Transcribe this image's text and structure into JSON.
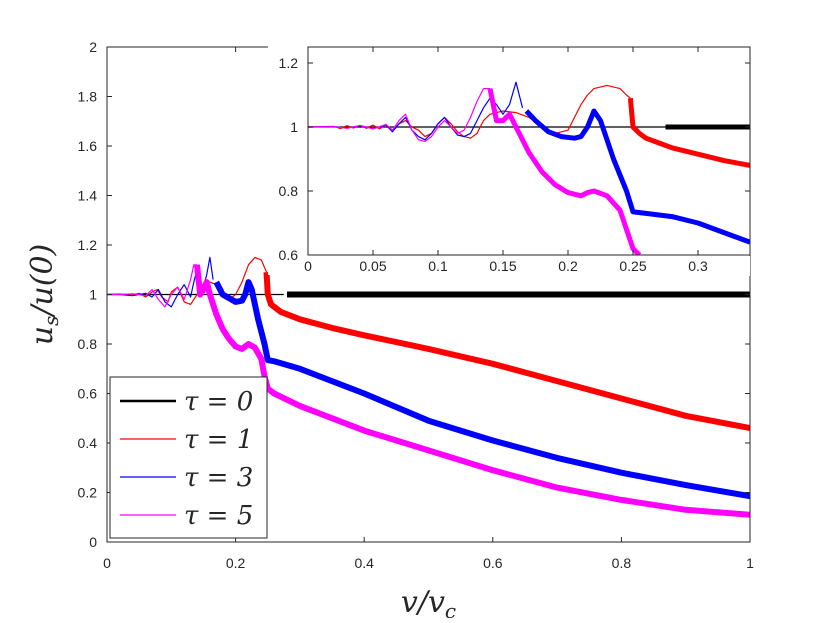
{
  "chart_data": [
    {
      "name": "main",
      "type": "line",
      "xlabel": "v/v_c",
      "ylabel": "u_s/u(0)",
      "xlim": [
        0,
        1
      ],
      "ylim": [
        0,
        2
      ],
      "xticks": [
        0,
        0.2,
        0.4,
        0.6,
        0.8,
        1
      ],
      "xtick_labels": [
        "0",
        "0.2",
        "0.4",
        "0.6",
        "0.8",
        "1"
      ],
      "yticks": [
        0,
        0.2,
        0.4,
        0.6,
        0.8,
        1,
        1.2,
        1.4,
        1.6,
        1.8,
        2
      ],
      "ytick_labels": [
        "0",
        "0.2",
        "0.4",
        "0.6",
        "0.8",
        "1",
        "1.2",
        "1.4",
        "1.6",
        "1.8",
        "2"
      ],
      "grid": false,
      "legend_position": "bottom-left",
      "series": [
        {
          "name": "tau0",
          "label": "τ = 0",
          "color": "#000000",
          "thin": [
            [
              0,
              1
            ],
            [
              0.275,
              1
            ]
          ],
          "thick": [
            [
              0.28,
              1
            ],
            [
              1,
              1
            ]
          ]
        },
        {
          "name": "tau1",
          "label": "τ = 1",
          "color": "#ff0000",
          "thin": [
            [
              0,
              1
            ],
            [
              0.02,
              1.002
            ],
            [
              0.035,
              0.997
            ],
            [
              0.05,
              1.005
            ],
            [
              0.06,
              0.99
            ],
            [
              0.07,
              1.01
            ],
            [
              0.078,
              1.02
            ],
            [
              0.085,
              0.99
            ],
            [
              0.095,
              0.97
            ],
            [
              0.1,
              1.01
            ],
            [
              0.11,
              1.03
            ],
            [
              0.12,
              0.97
            ],
            [
              0.13,
              0.96
            ],
            [
              0.14,
              1.0
            ],
            [
              0.15,
              1.04
            ],
            [
              0.16,
              1.05
            ],
            [
              0.17,
              1.04
            ],
            [
              0.18,
              1.0
            ],
            [
              0.19,
              0.98
            ],
            [
              0.2,
              1.0
            ],
            [
              0.21,
              1.05
            ],
            [
              0.22,
              1.12
            ],
            [
              0.23,
              1.15
            ],
            [
              0.24,
              1.14
            ],
            [
              0.248,
              1.09
            ]
          ],
          "thick": [
            [
              0.248,
              1.09
            ],
            [
              0.25,
              1.0
            ],
            [
              0.255,
              0.96
            ],
            [
              0.27,
              0.93
            ],
            [
              0.3,
              0.9
            ],
            [
              0.35,
              0.865
            ],
            [
              0.4,
              0.835
            ],
            [
              0.5,
              0.78
            ],
            [
              0.6,
              0.72
            ],
            [
              0.7,
              0.65
            ],
            [
              0.8,
              0.58
            ],
            [
              0.9,
              0.51
            ],
            [
              1,
              0.46
            ]
          ]
        },
        {
          "name": "tau3",
          "label": "τ = 3",
          "color": "#0000ff",
          "thin": [
            [
              0,
              1
            ],
            [
              0.02,
              1.0
            ],
            [
              0.04,
              0.995
            ],
            [
              0.06,
              1.005
            ],
            [
              0.07,
              0.99
            ],
            [
              0.08,
              1.02
            ],
            [
              0.09,
              0.97
            ],
            [
              0.1,
              0.95
            ],
            [
              0.11,
              1.0
            ],
            [
              0.12,
              1.04
            ],
            [
              0.13,
              0.99
            ],
            [
              0.135,
              1.05
            ],
            [
              0.14,
              1.1
            ],
            [
              0.145,
              1.05
            ],
            [
              0.15,
              1.03
            ],
            [
              0.155,
              1.08
            ],
            [
              0.16,
              1.15
            ],
            [
              0.165,
              1.06
            ]
          ],
          "thick": [
            [
              0.17,
              1.05
            ],
            [
              0.18,
              1.0
            ],
            [
              0.2,
              0.97
            ],
            [
              0.21,
              0.975
            ],
            [
              0.215,
              1.0
            ],
            [
              0.22,
              1.05
            ],
            [
              0.225,
              1.02
            ],
            [
              0.235,
              0.9
            ],
            [
              0.245,
              0.8
            ],
            [
              0.25,
              0.735
            ],
            [
              0.26,
              0.73
            ],
            [
              0.3,
              0.7
            ],
            [
              0.4,
              0.6
            ],
            [
              0.5,
              0.49
            ],
            [
              0.6,
              0.41
            ],
            [
              0.7,
              0.34
            ],
            [
              0.8,
              0.28
            ],
            [
              0.9,
              0.23
            ],
            [
              1,
              0.185
            ]
          ]
        },
        {
          "name": "tau5",
          "label": "τ = 5",
          "color": "#ff00ff",
          "thin": [
            [
              0,
              1
            ],
            [
              0.02,
              1.0
            ],
            [
              0.04,
              1.003
            ],
            [
              0.06,
              0.995
            ],
            [
              0.07,
              1.02
            ],
            [
              0.08,
              0.98
            ],
            [
              0.09,
              0.95
            ],
            [
              0.1,
              1.0
            ],
            [
              0.11,
              1.03
            ],
            [
              0.12,
              0.98
            ],
            [
              0.13,
              1.06
            ],
            [
              0.135,
              1.12
            ],
            [
              0.14,
              1.12
            ]
          ],
          "thick": [
            [
              0.14,
              1.12
            ],
            [
              0.145,
              1.0
            ],
            [
              0.15,
              1.02
            ],
            [
              0.155,
              1.05
            ],
            [
              0.16,
              1.0
            ],
            [
              0.17,
              0.92
            ],
            [
              0.18,
              0.86
            ],
            [
              0.19,
              0.82
            ],
            [
              0.2,
              0.79
            ],
            [
              0.21,
              0.78
            ],
            [
              0.22,
              0.8
            ],
            [
              0.23,
              0.785
            ],
            [
              0.24,
              0.74
            ],
            [
              0.245,
              0.67
            ],
            [
              0.25,
              0.62
            ],
            [
              0.26,
              0.6
            ],
            [
              0.3,
              0.55
            ],
            [
              0.4,
              0.45
            ],
            [
              0.5,
              0.37
            ],
            [
              0.6,
              0.29
            ],
            [
              0.7,
              0.22
            ],
            [
              0.8,
              0.17
            ],
            [
              0.9,
              0.13
            ],
            [
              1,
              0.11
            ]
          ]
        }
      ]
    },
    {
      "name": "inset",
      "type": "line",
      "xlim": [
        0,
        0.34
      ],
      "ylim": [
        0.6,
        1.25
      ],
      "xticks": [
        0,
        0.05,
        0.1,
        0.15,
        0.2,
        0.25,
        0.3
      ],
      "xtick_labels": [
        "0",
        "0.05",
        "0.1",
        "0.15",
        "0.2",
        "0.25",
        "0.3"
      ],
      "yticks": [
        0.6,
        0.8,
        1,
        1.2
      ],
      "ytick_labels": [
        "0.6",
        "0.8",
        "1",
        "1.2"
      ],
      "grid": false,
      "series": [
        {
          "name": "tau0",
          "color": "#000000",
          "thin": [
            [
              0,
              1
            ],
            [
              0.275,
              1
            ]
          ],
          "thick": [
            [
              0.275,
              1
            ],
            [
              0.34,
              1
            ]
          ]
        },
        {
          "name": "tau1",
          "color": "#ff0000",
          "thin": [
            [
              0,
              1
            ],
            [
              0.02,
              1.002
            ],
            [
              0.025,
              0.995
            ],
            [
              0.03,
              1.004
            ],
            [
              0.035,
              0.997
            ],
            [
              0.04,
              1.005
            ],
            [
              0.045,
              0.996
            ],
            [
              0.05,
              1.006
            ],
            [
              0.055,
              0.994
            ],
            [
              0.06,
              1.008
            ],
            [
              0.065,
              0.99
            ],
            [
              0.07,
              1.01
            ],
            [
              0.075,
              1.02
            ],
            [
              0.08,
              1.0
            ],
            [
              0.085,
              0.99
            ],
            [
              0.09,
              0.97
            ],
            [
              0.095,
              0.98
            ],
            [
              0.1,
              1.01
            ],
            [
              0.105,
              1.03
            ],
            [
              0.11,
              1.01
            ],
            [
              0.115,
              0.985
            ],
            [
              0.12,
              0.97
            ],
            [
              0.125,
              0.965
            ],
            [
              0.13,
              0.98
            ],
            [
              0.135,
              1.02
            ],
            [
              0.14,
              1.04
            ],
            [
              0.15,
              1.05
            ],
            [
              0.16,
              1.045
            ],
            [
              0.17,
              1.03
            ],
            [
              0.18,
              1.0
            ],
            [
              0.185,
              0.985
            ],
            [
              0.19,
              0.98
            ],
            [
              0.2,
              0.99
            ],
            [
              0.205,
              1.03
            ],
            [
              0.21,
              1.07
            ],
            [
              0.215,
              1.1
            ],
            [
              0.22,
              1.12
            ],
            [
              0.23,
              1.13
            ],
            [
              0.24,
              1.12
            ],
            [
              0.245,
              1.1
            ],
            [
              0.248,
              1.09
            ]
          ],
          "thick": [
            [
              0.248,
              1.09
            ],
            [
              0.25,
              1.0
            ],
            [
              0.255,
              0.98
            ],
            [
              0.26,
              0.965
            ],
            [
              0.27,
              0.95
            ],
            [
              0.28,
              0.935
            ],
            [
              0.3,
              0.915
            ],
            [
              0.32,
              0.895
            ],
            [
              0.34,
              0.88
            ]
          ]
        },
        {
          "name": "tau3",
          "color": "#0000ff",
          "thin": [
            [
              0,
              1
            ],
            [
              0.02,
              1.001
            ],
            [
              0.03,
              0.997
            ],
            [
              0.04,
              1.004
            ],
            [
              0.05,
              0.995
            ],
            [
              0.06,
              1.006
            ],
            [
              0.065,
              0.985
            ],
            [
              0.07,
              1.01
            ],
            [
              0.075,
              1.03
            ],
            [
              0.08,
              0.99
            ],
            [
              0.085,
              0.97
            ],
            [
              0.09,
              0.96
            ],
            [
              0.095,
              0.98
            ],
            [
              0.1,
              1.01
            ],
            [
              0.105,
              1.03
            ],
            [
              0.11,
              1.0
            ],
            [
              0.115,
              0.975
            ],
            [
              0.12,
              0.97
            ],
            [
              0.125,
              0.98
            ],
            [
              0.13,
              1.02
            ],
            [
              0.135,
              1.06
            ],
            [
              0.14,
              1.09
            ],
            [
              0.145,
              1.07
            ],
            [
              0.15,
              1.04
            ],
            [
              0.155,
              1.07
            ],
            [
              0.16,
              1.14
            ],
            [
              0.165,
              1.06
            ]
          ],
          "thick": [
            [
              0.168,
              1.05
            ],
            [
              0.175,
              1.02
            ],
            [
              0.185,
              0.985
            ],
            [
              0.195,
              0.97
            ],
            [
              0.205,
              0.965
            ],
            [
              0.21,
              0.97
            ],
            [
              0.215,
              1.0
            ],
            [
              0.22,
              1.05
            ],
            [
              0.225,
              1.02
            ],
            [
              0.235,
              0.9
            ],
            [
              0.245,
              0.8
            ],
            [
              0.25,
              0.735
            ],
            [
              0.26,
              0.73
            ],
            [
              0.28,
              0.72
            ],
            [
              0.3,
              0.7
            ],
            [
              0.32,
              0.67
            ],
            [
              0.34,
              0.64
            ]
          ]
        },
        {
          "name": "tau5",
          "color": "#ff00ff",
          "thin": [
            [
              0,
              1
            ],
            [
              0.02,
              1.001
            ],
            [
              0.03,
              0.996
            ],
            [
              0.04,
              1.005
            ],
            [
              0.05,
              0.994
            ],
            [
              0.06,
              1.008
            ],
            [
              0.065,
              0.99
            ],
            [
              0.07,
              1.02
            ],
            [
              0.075,
              1.04
            ],
            [
              0.08,
              0.99
            ],
            [
              0.085,
              0.96
            ],
            [
              0.09,
              0.955
            ],
            [
              0.095,
              0.97
            ],
            [
              0.1,
              1.0
            ],
            [
              0.105,
              1.02
            ],
            [
              0.11,
              1.0
            ],
            [
              0.115,
              0.98
            ],
            [
              0.12,
              0.99
            ],
            [
              0.125,
              1.03
            ],
            [
              0.13,
              1.08
            ],
            [
              0.135,
              1.12
            ],
            [
              0.14,
              1.12
            ]
          ],
          "thick": [
            [
              0.14,
              1.12
            ],
            [
              0.145,
              1.02
            ],
            [
              0.15,
              1.02
            ],
            [
              0.155,
              1.04
            ],
            [
              0.16,
              1.0
            ],
            [
              0.17,
              0.92
            ],
            [
              0.18,
              0.86
            ],
            [
              0.19,
              0.82
            ],
            [
              0.2,
              0.795
            ],
            [
              0.21,
              0.785
            ],
            [
              0.215,
              0.795
            ],
            [
              0.22,
              0.8
            ],
            [
              0.23,
              0.785
            ],
            [
              0.24,
              0.74
            ],
            [
              0.245,
              0.68
            ],
            [
              0.25,
              0.62
            ],
            [
              0.255,
              0.6
            ]
          ]
        }
      ]
    }
  ]
}
